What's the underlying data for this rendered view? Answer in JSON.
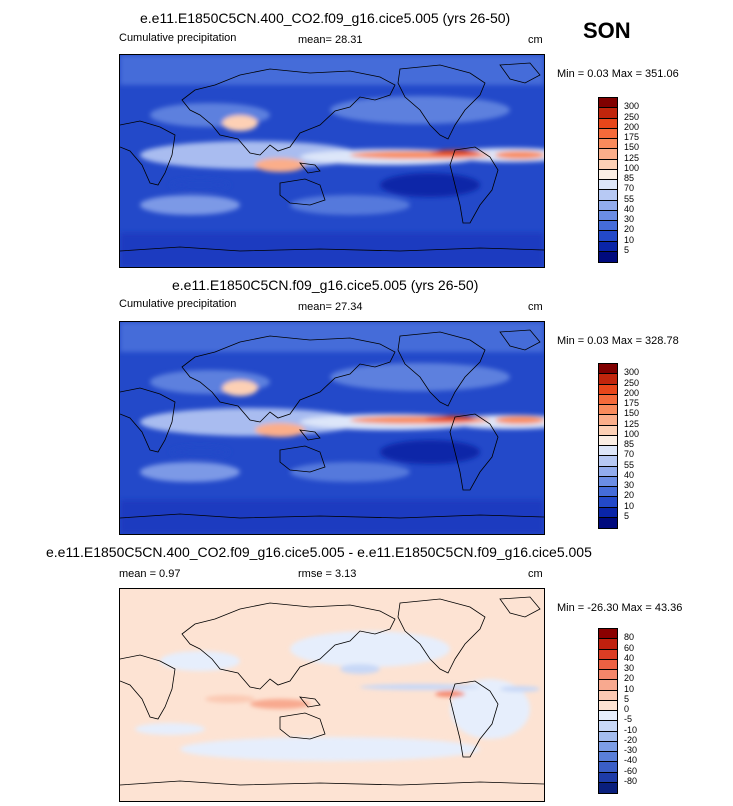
{
  "season": "SON",
  "panels": [
    {
      "title": "e.e11.E1850C5CN.400_CO2.f09_g16.cice5.005 (yrs 26-50)",
      "left_label": "Cumulative precipitation",
      "center_label": "mean=  28.31",
      "units": "cm",
      "minmax": "Min =   0.03 Max = 351.06",
      "colorbar_labels": [
        "300",
        "250",
        "200",
        "175",
        "150",
        "125",
        "100",
        "85",
        "70",
        "55",
        "40",
        "30",
        "20",
        "10",
        "5"
      ],
      "colorbar_colors": [
        "#800000",
        "#c1250c",
        "#e8461a",
        "#f56a3a",
        "#f98b5c",
        "#fbae8a",
        "#fdd0b5",
        "#fbeee4",
        "#dde6f9",
        "#b7c9f4",
        "#92aced",
        "#6b8de4",
        "#456cd9",
        "#2349c9",
        "#0a25a8",
        "#000a7d"
      ]
    },
    {
      "title": "e.e11.E1850C5CN.f09_g16.cice5.005 (yrs 26-50)",
      "left_label": "Cumulative precipitation",
      "center_label": "mean=  27.34",
      "units": "cm",
      "minmax": "Min =   0.03 Max = 328.78",
      "colorbar_labels": [
        "300",
        "250",
        "200",
        "175",
        "150",
        "125",
        "100",
        "85",
        "70",
        "55",
        "40",
        "30",
        "20",
        "10",
        "5"
      ],
      "colorbar_colors": [
        "#800000",
        "#c1250c",
        "#e8461a",
        "#f56a3a",
        "#f98b5c",
        "#fbae8a",
        "#fdd0b5",
        "#fbeee4",
        "#dde6f9",
        "#b7c9f4",
        "#92aced",
        "#6b8de4",
        "#456cd9",
        "#2349c9",
        "#0a25a8",
        "#000a7d"
      ]
    },
    {
      "title": "e.e11.E1850C5CN.400_CO2.f09_g16.cice5.005 - e.e11.E1850C5CN.f09_g16.cice5.005",
      "left_label": "mean =   0.97",
      "center_label": "rmse =   3.13",
      "units": "cm",
      "minmax": "Min = -26.30 Max =  43.36",
      "colorbar_labels": [
        "80",
        "60",
        "40",
        "30",
        "20",
        "10",
        "5",
        "0",
        "-5",
        "-10",
        "-20",
        "-30",
        "-40",
        "-60",
        "-80"
      ],
      "colorbar_colors": [
        "#8b0000",
        "#c0200e",
        "#dc3d24",
        "#ec6143",
        "#f4866a",
        "#f8a98f",
        "#fbc9b3",
        "#fde3d3",
        "#e6eefc",
        "#c8d8f7",
        "#a4bdef",
        "#7d9ee6",
        "#5a7fd9",
        "#3a5ec6",
        "#1e3ca8",
        "#0a1f7d"
      ]
    }
  ]
}
